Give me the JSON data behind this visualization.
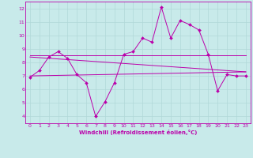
{
  "xlabel": "Windchill (Refroidissement éolien,°C)",
  "bg_color": "#c8eaea",
  "grid_color": "#b0d8d8",
  "line_color": "#bb00aa",
  "xlim": [
    -0.5,
    23.5
  ],
  "ylim": [
    3.5,
    12.5
  ],
  "yticks": [
    4,
    5,
    6,
    7,
    8,
    9,
    10,
    11,
    12
  ],
  "xticks": [
    0,
    1,
    2,
    3,
    4,
    5,
    6,
    7,
    8,
    9,
    10,
    11,
    12,
    13,
    14,
    15,
    16,
    17,
    18,
    19,
    20,
    21,
    22,
    23
  ],
  "line1_x": [
    0,
    1,
    2,
    3,
    4,
    5,
    6,
    7,
    8,
    9,
    10,
    11,
    12,
    13,
    14,
    15,
    16,
    17,
    18,
    19,
    20,
    21,
    22,
    23
  ],
  "line1_y": [
    6.9,
    7.4,
    8.4,
    8.8,
    8.3,
    7.1,
    6.5,
    4.0,
    5.1,
    6.5,
    8.6,
    8.8,
    9.8,
    9.5,
    12.1,
    9.8,
    11.1,
    10.8,
    10.4,
    8.6,
    5.9,
    7.1,
    7.0,
    7.0
  ],
  "line2_x": [
    0,
    23
  ],
  "line2_y": [
    8.5,
    8.5
  ],
  "line3_x": [
    0,
    23
  ],
  "line3_y": [
    8.4,
    7.3
  ],
  "line4_x": [
    0,
    23
  ],
  "line4_y": [
    7.0,
    7.3
  ]
}
